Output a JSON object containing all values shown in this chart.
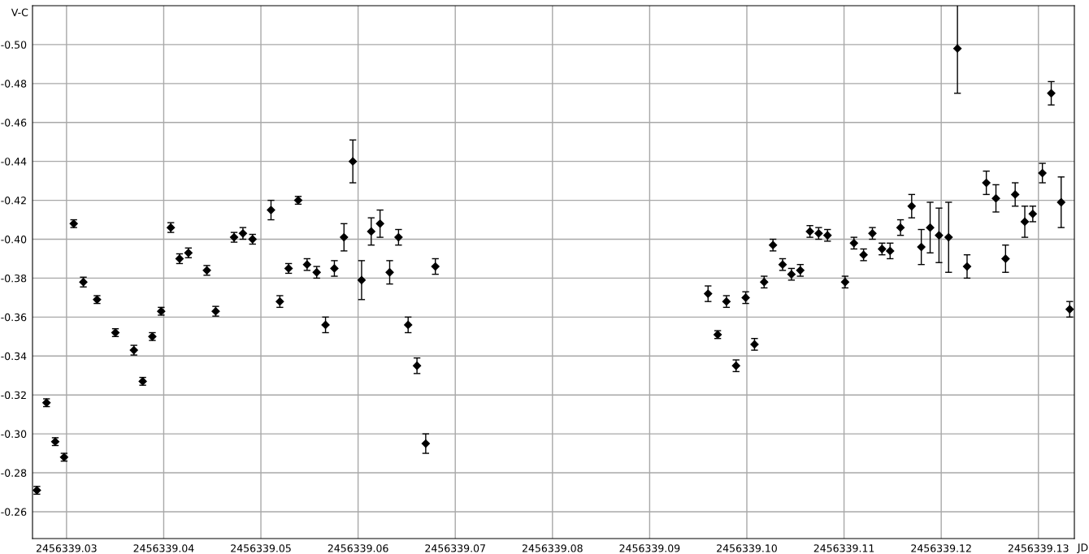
{
  "chart_data": {
    "type": "scatter",
    "xlabel": "JD",
    "ylabel": "V-C",
    "x": [
      2456339.02695,
      2456339.02794,
      2456339.02884,
      2456339.02975,
      2456339.03074,
      2456339.03173,
      2456339.03314,
      2456339.03503,
      2456339.03693,
      2456339.03784,
      2456339.03883,
      2456339.03974,
      2456339.04073,
      2456339.04163,
      2456339.04254,
      2456339.04444,
      2456339.04535,
      2456339.04724,
      2456339.04815,
      2456339.04914,
      2456339.05104,
      2456339.05195,
      2456339.05285,
      2456339.05384,
      2456339.05475,
      2456339.05574,
      2456339.05665,
      2456339.05756,
      2456339.05855,
      2456339.05946,
      2456339.06036,
      2456339.06135,
      2456339.06226,
      2456339.06325,
      2456339.06416,
      2456339.06515,
      2456339.06606,
      2456339.06696,
      2456339.06795,
      2456339.09601,
      2456339.097,
      2456339.0979,
      2456339.09889,
      2456339.09988,
      2456339.10079,
      2456339.10178,
      2456339.10269,
      2456339.10368,
      2456339.10459,
      2456339.1055,
      2456339.10649,
      2456339.10739,
      2456339.1083,
      2456339.11011,
      2456339.11102,
      2456339.11201,
      2456339.11292,
      2456339.11391,
      2456339.11474,
      2456339.11581,
      2456339.11696,
      2456339.11795,
      2456339.11886,
      2456339.11977,
      2456339.12076,
      2456339.12167,
      2456339.12266,
      2456339.12464,
      2456339.12563,
      2456339.12662,
      2456339.12761,
      2456339.1286,
      2456339.12942,
      2456339.13041,
      2456339.13132,
      2456339.13234,
      2456339.13322
    ],
    "series": [
      {
        "color": "#000000",
        "values": [
          -0.271,
          -0.316,
          -0.296,
          -0.288,
          -0.408,
          -0.378,
          -0.369,
          -0.352,
          -0.343,
          -0.327,
          -0.35,
          -0.363,
          -0.406,
          -0.39,
          -0.393,
          -0.384,
          -0.363,
          -0.401,
          -0.403,
          -0.4,
          -0.415,
          -0.368,
          -0.385,
          -0.42,
          -0.387,
          -0.383,
          -0.356,
          -0.385,
          -0.401,
          -0.44,
          -0.379,
          -0.404,
          -0.408,
          -0.383,
          -0.401,
          -0.356,
          -0.335,
          -0.295,
          -0.386,
          -0.372,
          -0.351,
          -0.368,
          -0.335,
          -0.37,
          -0.346,
          -0.378,
          -0.397,
          -0.387,
          -0.382,
          -0.384,
          -0.404,
          -0.403,
          -0.402,
          -0.378,
          -0.398,
          -0.392,
          -0.403,
          -0.395,
          -0.394,
          -0.406,
          -0.417,
          -0.396,
          -0.406,
          -0.402,
          -0.401,
          -0.498,
          -0.386,
          -0.429,
          -0.421,
          -0.39,
          -0.423,
          -0.409,
          -0.413,
          -0.434,
          -0.475,
          -0.419,
          -0.364
        ],
        "errors": [
          0.002,
          0.002,
          0.002,
          0.002,
          0.002,
          0.0025,
          0.002,
          0.002,
          0.0025,
          0.002,
          0.002,
          0.002,
          0.0025,
          0.0025,
          0.0025,
          0.0025,
          0.0025,
          0.0025,
          0.003,
          0.0025,
          0.005,
          0.003,
          0.0025,
          0.002,
          0.003,
          0.003,
          0.004,
          0.004,
          0.007,
          0.011,
          0.01,
          0.007,
          0.007,
          0.006,
          0.004,
          0.004,
          0.004,
          0.005,
          0.004,
          0.004,
          0.002,
          0.003,
          0.003,
          0.003,
          0.003,
          0.003,
          0.003,
          0.003,
          0.003,
          0.003,
          0.003,
          0.003,
          0.003,
          0.003,
          0.003,
          0.003,
          0.003,
          0.003,
          0.004,
          0.004,
          0.006,
          0.009,
          0.013,
          0.014,
          0.018,
          0.023,
          0.006,
          0.006,
          0.007,
          0.007,
          0.006,
          0.008,
          0.004,
          0.005,
          0.006,
          0.013,
          0.004
        ]
      }
    ],
    "xlim": [
      2456339.0265,
      2456339.1337
    ],
    "ylim": [
      -0.2462,
      -0.52
    ],
    "xticks": [
      {
        "value": 2456339.03,
        "label": "2456339.03"
      },
      {
        "value": 2456339.04,
        "label": "2456339.04"
      },
      {
        "value": 2456339.05,
        "label": "2456339.05"
      },
      {
        "value": 2456339.06,
        "label": "2456339.06"
      },
      {
        "value": 2456339.07,
        "label": "2456339.07"
      },
      {
        "value": 2456339.08,
        "label": "2456339.08"
      },
      {
        "value": 2456339.09,
        "label": "2456339.09"
      },
      {
        "value": 2456339.1,
        "label": "2456339.10"
      },
      {
        "value": 2456339.11,
        "label": "2456339.11"
      },
      {
        "value": 2456339.12,
        "label": "2456339.12"
      },
      {
        "value": 2456339.13,
        "label": "2456339.13"
      }
    ],
    "yticks": [
      {
        "value": -0.5,
        "label": "-0.50"
      },
      {
        "value": -0.48,
        "label": "-0.48"
      },
      {
        "value": -0.46,
        "label": "-0.46"
      },
      {
        "value": -0.44,
        "label": "-0.44"
      },
      {
        "value": -0.42,
        "label": "-0.42"
      },
      {
        "value": -0.4,
        "label": "-0.40"
      },
      {
        "value": -0.38,
        "label": "-0.38"
      },
      {
        "value": -0.36,
        "label": "-0.36"
      },
      {
        "value": -0.34,
        "label": "-0.34"
      },
      {
        "value": -0.32,
        "label": "-0.32"
      },
      {
        "value": -0.3,
        "label": "-0.30"
      },
      {
        "value": -0.28,
        "label": "-0.28"
      },
      {
        "value": -0.26,
        "label": "-0.26"
      }
    ],
    "grid": true,
    "marker": "diamond"
  }
}
